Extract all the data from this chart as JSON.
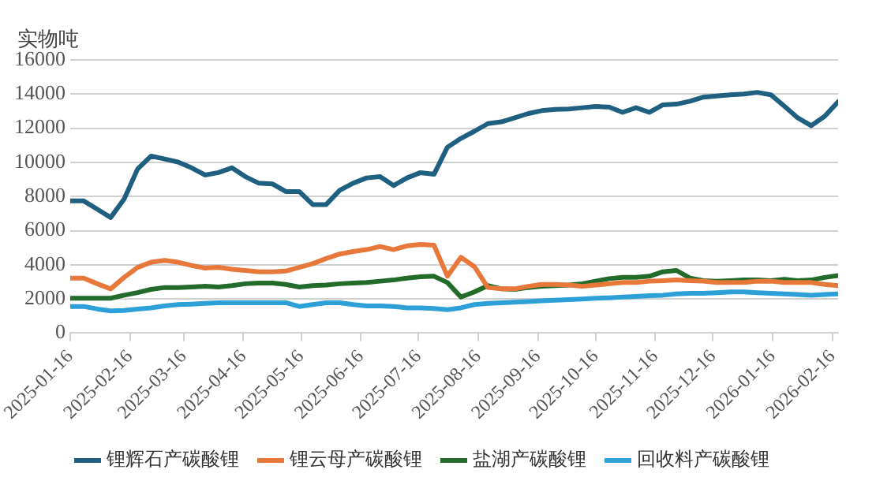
{
  "chart_data": {
    "type": "line",
    "ylabel": "实物吨",
    "x": [
      "2025-01-16",
      "2025-01-23",
      "2025-01-30",
      "2025-02-06",
      "2025-02-13",
      "2025-02-20",
      "2025-02-27",
      "2025-03-06",
      "2025-03-13",
      "2025-03-20",
      "2025-03-27",
      "2025-04-03",
      "2025-04-10",
      "2025-04-17",
      "2025-04-24",
      "2025-05-01",
      "2025-05-08",
      "2025-05-15",
      "2025-05-22",
      "2025-05-29",
      "2025-06-05",
      "2025-06-12",
      "2025-06-19",
      "2025-06-26",
      "2025-07-03",
      "2025-07-10",
      "2025-07-17",
      "2025-07-24",
      "2025-07-31",
      "2025-08-07",
      "2025-08-14",
      "2025-08-21",
      "2025-08-28",
      "2025-09-04",
      "2025-09-11",
      "2025-09-18",
      "2025-09-25",
      "2025-10-02",
      "2025-10-09",
      "2025-10-16",
      "2025-10-23",
      "2025-10-30",
      "2025-11-06",
      "2025-11-13",
      "2025-11-20",
      "2025-11-27",
      "2025-12-04",
      "2025-12-11",
      "2025-12-18",
      "2025-12-25",
      "2026-01-01",
      "2026-01-08",
      "2026-01-15",
      "2026-01-22",
      "2026-01-29",
      "2026-02-05",
      "2026-02-12",
      "2026-02-19"
    ],
    "series": [
      {
        "name": "锂辉石产碳酸锂",
        "color": "#1f5f80",
        "values": [
          7740,
          7740,
          7260,
          6770,
          7850,
          9610,
          10370,
          10200,
          10020,
          9680,
          9260,
          9400,
          9680,
          9160,
          8780,
          8740,
          8290,
          8290,
          7530,
          7530,
          8360,
          8780,
          9090,
          9160,
          8640,
          9090,
          9400,
          9300,
          10890,
          11400,
          11820,
          12270,
          12370,
          12610,
          12860,
          13030,
          13100,
          13130,
          13200,
          13270,
          13240,
          12930,
          13200,
          12930,
          13370,
          13410,
          13580,
          13820,
          13890,
          13960,
          14000,
          14100,
          13960,
          13300,
          12610,
          12150,
          12700,
          13550
        ]
      },
      {
        "name": "锂云母产碳酸锂",
        "color": "#e8773a",
        "values": [
          3220,
          3220,
          2890,
          2590,
          3260,
          3850,
          4150,
          4260,
          4150,
          3960,
          3810,
          3850,
          3740,
          3670,
          3590,
          3590,
          3630,
          3850,
          4070,
          4370,
          4630,
          4780,
          4890,
          5070,
          4890,
          5110,
          5190,
          5150,
          3330,
          4440,
          3890,
          2670,
          2590,
          2590,
          2740,
          2850,
          2850,
          2810,
          2740,
          2810,
          2890,
          2960,
          2960,
          3040,
          3070,
          3110,
          3070,
          3040,
          2960,
          2960,
          2960,
          3040,
          3040,
          2960,
          2960,
          2960,
          2850,
          2780
        ]
      },
      {
        "name": "盐湖产碳酸锂",
        "color": "#236b2a",
        "values": [
          2040,
          2040,
          2040,
          2040,
          2220,
          2370,
          2560,
          2670,
          2670,
          2700,
          2740,
          2700,
          2780,
          2890,
          2930,
          2930,
          2850,
          2700,
          2780,
          2810,
          2890,
          2930,
          2960,
          3040,
          3110,
          3220,
          3300,
          3330,
          2960,
          2110,
          2410,
          2780,
          2590,
          2560,
          2670,
          2740,
          2780,
          2810,
          2890,
          3040,
          3190,
          3260,
          3260,
          3330,
          3590,
          3670,
          3220,
          3070,
          3040,
          3070,
          3110,
          3110,
          3070,
          3150,
          3070,
          3110,
          3260,
          3370
        ]
      },
      {
        "name": "回收料产碳酸锂",
        "color": "#2ea0d8",
        "values": [
          1560,
          1560,
          1410,
          1300,
          1330,
          1410,
          1480,
          1590,
          1670,
          1700,
          1740,
          1780,
          1780,
          1780,
          1780,
          1780,
          1780,
          1560,
          1670,
          1780,
          1780,
          1670,
          1590,
          1590,
          1560,
          1480,
          1480,
          1440,
          1370,
          1480,
          1670,
          1740,
          1780,
          1810,
          1850,
          1890,
          1930,
          1960,
          2000,
          2040,
          2070,
          2110,
          2150,
          2190,
          2220,
          2300,
          2330,
          2330,
          2370,
          2410,
          2410,
          2370,
          2330,
          2300,
          2260,
          2220,
          2260,
          2300
        ]
      }
    ],
    "xlim": [
      "2025-01-16",
      "2026-02-19"
    ],
    "xticks": [
      "2025-01-16",
      "2025-02-16",
      "2025-03-16",
      "2025-04-16",
      "2025-05-16",
      "2025-06-16",
      "2025-07-16",
      "2025-08-16",
      "2025-09-16",
      "2025-10-16",
      "2025-11-16",
      "2025-12-16",
      "2026-01-16",
      "2026-02-16"
    ],
    "ylim": [
      0,
      16000
    ],
    "yticks": [
      0,
      2000,
      4000,
      6000,
      8000,
      10000,
      12000,
      14000,
      16000
    ],
    "grid": "y",
    "legend": "bottom"
  }
}
